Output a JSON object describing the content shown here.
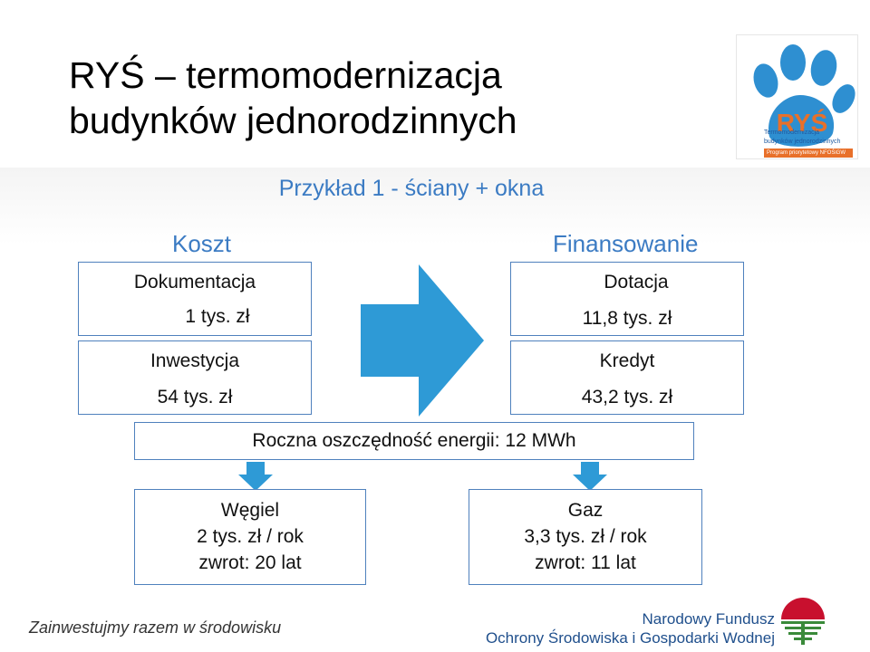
{
  "title": {
    "line1": "RYŚ – termomodernizacja",
    "line2": "budynków jednorodzinnych"
  },
  "subtitle": "Przykład 1 - ściany + okna",
  "logo": {
    "icon": "paw-icon",
    "brand": "RYŚ",
    "line1": "Termomodernizacja",
    "line2": "budynków jednorodzinnych",
    "line3": "Program priorytetowy NFOŚiGW",
    "colors": {
      "paw": "#2e8fd1",
      "orange": "#e8702a"
    }
  },
  "cost": {
    "heading": "Koszt",
    "items": [
      {
        "label": "Dokumentacja",
        "value": "1 tys. zł"
      },
      {
        "label": "Inwestycja",
        "value": "54 tys. zł"
      }
    ]
  },
  "financing": {
    "heading": "Finansowanie",
    "items": [
      {
        "label": "Dotacja",
        "value": "11,8 tys. zł"
      },
      {
        "label": "Kredyt",
        "value": "43,2 tys. zł"
      }
    ]
  },
  "savings": "Roczna oszczędność energii: 12 MWh",
  "results": [
    {
      "label": "Węgiel",
      "cost": "2 tys. zł / rok",
      "payback": "zwrot: 20 lat"
    },
    {
      "label": "Gaz",
      "cost": "3,3 tys. zł / rok",
      "payback": "zwrot: 11 lat"
    }
  ],
  "footer": {
    "slogan": "Zainwestujmy razem w środowisku",
    "fund_line1": "Narodowy Fundusz",
    "fund_line2": "Ochrony Środowiska i Gospodarki Wodnej",
    "fund_icon": "nfosigw-logo-icon"
  },
  "colors": {
    "accent": "#3b7bc3",
    "box_border": "#4f81bd",
    "arrow": "#2e9ad6"
  }
}
